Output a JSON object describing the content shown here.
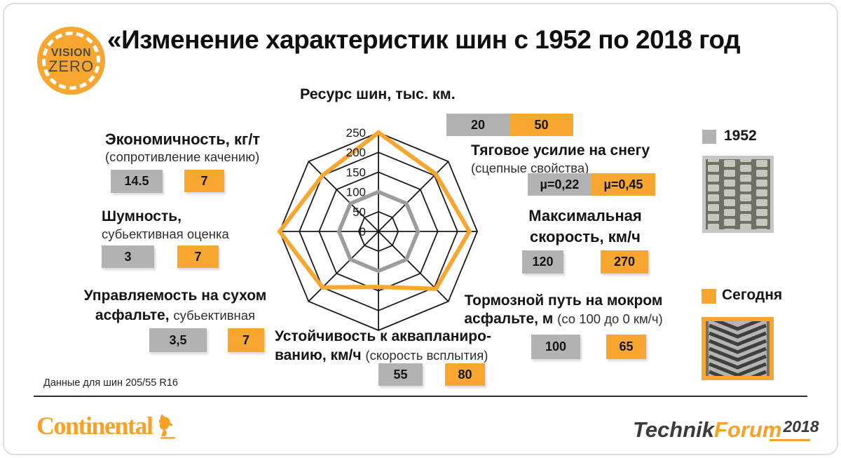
{
  "slide": {
    "title": "«Изменение характеристик шин с 1952 по 2018 год",
    "footnote": "Данные для шин 205/55 R16"
  },
  "logo": {
    "line1": "VISION",
    "line2": "ZERO"
  },
  "colors": {
    "orange": "#F7A630",
    "gray_box": "#B2B2B2",
    "radar_gray": "#9C9C9C",
    "radar_grid": "#1A1A1A",
    "ink": "#161616"
  },
  "chart_data": {
    "type": "radar",
    "max": 250,
    "ticks": [
      0,
      50,
      100,
      150,
      200,
      250
    ],
    "axes": [
      {
        "label": "Ресурс шин, тыс. км.",
        "v1952": "20",
        "today": "50"
      },
      {
        "label": "Тяговое усилие на снегу (сцепные свойства)",
        "v1952": "µ=0,22",
        "today": "µ=0,45"
      },
      {
        "label": "Максимальная скорость, км/ч",
        "v1952": "120",
        "today": "270"
      },
      {
        "label": "Тормозной путь на мокром асфальте, м (со 100 до 0 км/ч)",
        "v1952": "100",
        "today": "65"
      },
      {
        "label": "Устойчивость к аквапланированию, км/ч (скорость всплытия)",
        "v1952": "55",
        "today": "80"
      },
      {
        "label": "Управляемость на сухом асфальте, субьективная оценка",
        "v1952": "3,5",
        "today": "7"
      },
      {
        "label": "Шумность, субьективная оценка",
        "v1952": "3",
        "today": "7"
      },
      {
        "label": "Экономичность, кг/т (сопротивление качению)",
        "v1952": "14.5",
        "today": "7"
      }
    ],
    "series": [
      {
        "name": "1952",
        "color": "#9C9C9C",
        "plotted": [
          100,
          100,
          100,
          100,
          100,
          100,
          100,
          100
        ]
      },
      {
        "name": "Сегодня",
        "color": "#F7A630",
        "plotted": [
          250,
          205,
          230,
          205,
          140,
          200,
          250,
          200
        ]
      }
    ],
    "legend_position": "right"
  },
  "metrics": [
    {
      "t1": "Ресурс шин, тыс. км.",
      "old": "20",
      "new": "50"
    },
    {
      "t1": "Тяговое усилие на снегу",
      "note": "(сцепные свойства)",
      "old": "µ=0,22",
      "new": "µ=0,45"
    },
    {
      "t1": "Максимальная",
      "t2": "скорость, км/ч",
      "old": "120",
      "new": "270"
    },
    {
      "t1": "Тормозной путь на мокром",
      "t2": "асфальте, м ",
      "note": "(со 100 до 0 км/ч)",
      "old": "100",
      "new": "65"
    },
    {
      "t1": "Устойчивость к аквапланиро-",
      "t2": "ванию, км/ч ",
      "note": "(скорость всплытия)",
      "old": "55",
      "new": "80"
    },
    {
      "t1": "Управляемость на сухом",
      "t2": "асфальте, ",
      "note": "субьективная оценка",
      "old": "3,5",
      "new": "7"
    },
    {
      "t1": "Шумность,",
      "note": "субьективная оценка",
      "old": "3",
      "new": "7"
    },
    {
      "t1": "Экономичность, кг/т",
      "note": "(сопротивление качению)",
      "old": "14.5",
      "new": "7"
    }
  ],
  "legend": {
    "old_label": "1952",
    "new_label": "Сегодня"
  },
  "footer": {
    "brand": "Continental",
    "event_part1": "Technik",
    "event_part2": "Forum",
    "event_year": "2018"
  }
}
